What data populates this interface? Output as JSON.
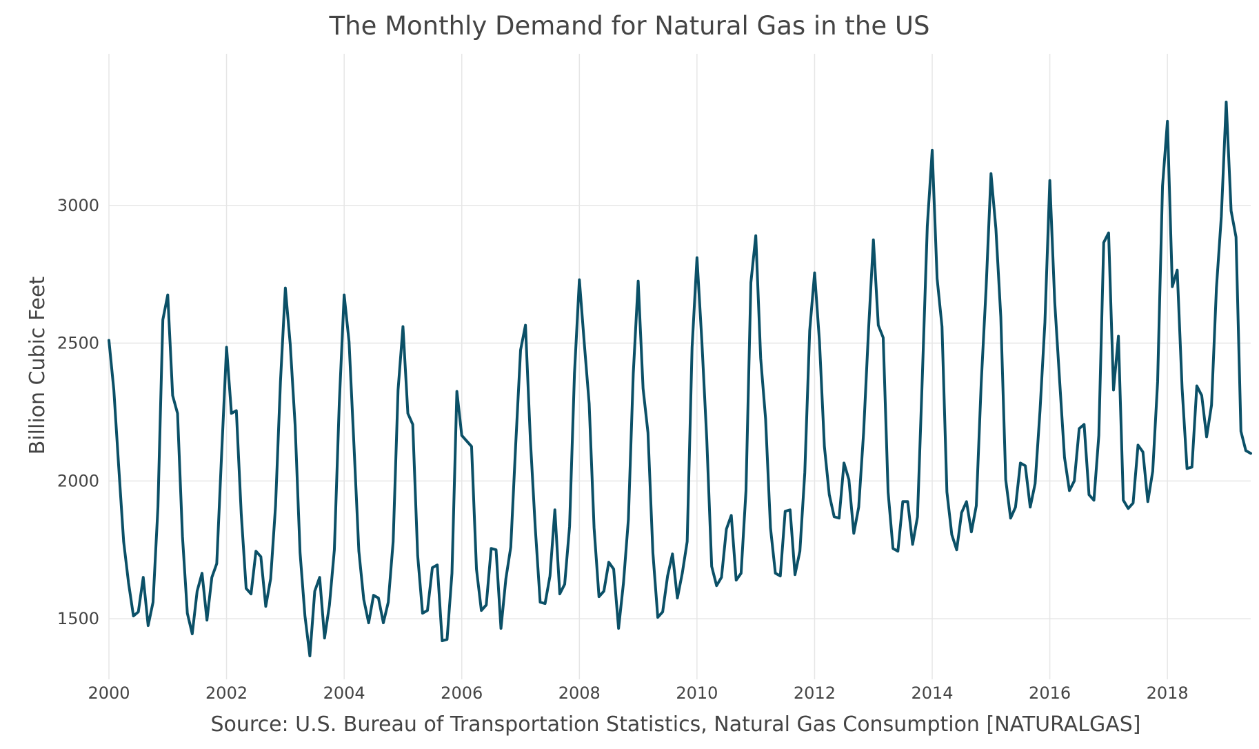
{
  "chart_data": {
    "type": "line",
    "title": "The Monthly Demand for Natural Gas in the US",
    "xlabel": "Source: U.S. Bureau of Transportation Statistics, Natural Gas Consumption [NATURALGAS]",
    "ylabel": "Billion Cubic Feet",
    "x_ticks": [
      "2000",
      "2002",
      "2004",
      "2006",
      "2008",
      "2010",
      "2012",
      "2014",
      "2016",
      "2018"
    ],
    "y_ticks": [
      "1500",
      "2000",
      "2500",
      "3000"
    ],
    "xlim": [
      "2000-01",
      "2019-06"
    ],
    "ylim": [
      1280,
      3550
    ],
    "grid": true,
    "colors": {
      "line": "#0b5067",
      "grid": "#e6e6e6",
      "text": "#444444",
      "background": "#ffffff"
    },
    "x": [
      "2000-01",
      "2000-02",
      "2000-03",
      "2000-04",
      "2000-05",
      "2000-06",
      "2000-07",
      "2000-08",
      "2000-09",
      "2000-10",
      "2000-11",
      "2000-12",
      "2001-01",
      "2001-02",
      "2001-03",
      "2001-04",
      "2001-05",
      "2001-06",
      "2001-07",
      "2001-08",
      "2001-09",
      "2001-10",
      "2001-11",
      "2001-12",
      "2002-01",
      "2002-02",
      "2002-03",
      "2002-04",
      "2002-05",
      "2002-06",
      "2002-07",
      "2002-08",
      "2002-09",
      "2002-10",
      "2002-11",
      "2002-12",
      "2003-01",
      "2003-02",
      "2003-03",
      "2003-04",
      "2003-05",
      "2003-06",
      "2003-07",
      "2003-08",
      "2003-09",
      "2003-10",
      "2003-11",
      "2003-12",
      "2004-01",
      "2004-02",
      "2004-03",
      "2004-04",
      "2004-05",
      "2004-06",
      "2004-07",
      "2004-08",
      "2004-09",
      "2004-10",
      "2004-11",
      "2004-12",
      "2005-01",
      "2005-02",
      "2005-03",
      "2005-04",
      "2005-05",
      "2005-06",
      "2005-07",
      "2005-08",
      "2005-09",
      "2005-10",
      "2005-11",
      "2005-12",
      "2006-01",
      "2006-02",
      "2006-03",
      "2006-04",
      "2006-05",
      "2006-06",
      "2006-07",
      "2006-08",
      "2006-09",
      "2006-10",
      "2006-11",
      "2006-12",
      "2007-01",
      "2007-02",
      "2007-03",
      "2007-04",
      "2007-05",
      "2007-06",
      "2007-07",
      "2007-08",
      "2007-09",
      "2007-10",
      "2007-11",
      "2007-12",
      "2008-01",
      "2008-02",
      "2008-03",
      "2008-04",
      "2008-05",
      "2008-06",
      "2008-07",
      "2008-08",
      "2008-09",
      "2008-10",
      "2008-11",
      "2008-12",
      "2009-01",
      "2009-02",
      "2009-03",
      "2009-04",
      "2009-05",
      "2009-06",
      "2009-07",
      "2009-08",
      "2009-09",
      "2009-10",
      "2009-11",
      "2009-12",
      "2010-01",
      "2010-02",
      "2010-03",
      "2010-04",
      "2010-05",
      "2010-06",
      "2010-07",
      "2010-08",
      "2010-09",
      "2010-10",
      "2010-11",
      "2010-12",
      "2011-01",
      "2011-02",
      "2011-03",
      "2011-04",
      "2011-05",
      "2011-06",
      "2011-07",
      "2011-08",
      "2011-09",
      "2011-10",
      "2011-11",
      "2011-12",
      "2012-01",
      "2012-02",
      "2012-03",
      "2012-04",
      "2012-05",
      "2012-06",
      "2012-07",
      "2012-08",
      "2012-09",
      "2012-10",
      "2012-11",
      "2012-12",
      "2013-01",
      "2013-02",
      "2013-03",
      "2013-04",
      "2013-05",
      "2013-06",
      "2013-07",
      "2013-08",
      "2013-09",
      "2013-10",
      "2013-11",
      "2013-12",
      "2014-01",
      "2014-02",
      "2014-03",
      "2014-04",
      "2014-05",
      "2014-06",
      "2014-07",
      "2014-08",
      "2014-09",
      "2014-10",
      "2014-11",
      "2014-12",
      "2015-01",
      "2015-02",
      "2015-03",
      "2015-04",
      "2015-05",
      "2015-06",
      "2015-07",
      "2015-08",
      "2015-09",
      "2015-10",
      "2015-11",
      "2015-12",
      "2016-01",
      "2016-02",
      "2016-03",
      "2016-04",
      "2016-05",
      "2016-06",
      "2016-07",
      "2016-08",
      "2016-09",
      "2016-10",
      "2016-11",
      "2016-12",
      "2017-01",
      "2017-02",
      "2017-03",
      "2017-04",
      "2017-05",
      "2017-06",
      "2017-07",
      "2017-08",
      "2017-09",
      "2017-10",
      "2017-11",
      "2017-12",
      "2018-01",
      "2018-02",
      "2018-03",
      "2018-04",
      "2018-05",
      "2018-06",
      "2018-07",
      "2018-08",
      "2018-09",
      "2018-10",
      "2018-11",
      "2018-12",
      "2019-01",
      "2019-02",
      "2019-03",
      "2019-04",
      "2019-05",
      "2019-06"
    ],
    "values": [
      2510,
      2330,
      2050,
      1780,
      1630,
      1510,
      1525,
      1650,
      1475,
      1560,
      1905,
      2585,
      2675,
      2310,
      2245,
      1800,
      1520,
      1445,
      1600,
      1665,
      1495,
      1650,
      1700,
      2100,
      2485,
      2245,
      2255,
      1880,
      1610,
      1590,
      1745,
      1725,
      1545,
      1645,
      1910,
      2360,
      2700,
      2495,
      2200,
      1740,
      1510,
      1365,
      1600,
      1650,
      1430,
      1550,
      1750,
      2280,
      2675,
      2505,
      2130,
      1745,
      1570,
      1485,
      1585,
      1575,
      1485,
      1560,
      1780,
      2330,
      2560,
      2245,
      2205,
      1730,
      1520,
      1530,
      1685,
      1695,
      1420,
      1425,
      1665,
      2325,
      2165,
      2145,
      2125,
      1680,
      1530,
      1550,
      1755,
      1750,
      1465,
      1645,
      1760,
      2130,
      2475,
      2565,
      2150,
      1830,
      1560,
      1555,
      1655,
      1895,
      1590,
      1625,
      1835,
      2390,
      2730,
      2500,
      2280,
      1830,
      1580,
      1600,
      1705,
      1680,
      1465,
      1630,
      1860,
      2390,
      2725,
      2335,
      2175,
      1740,
      1505,
      1525,
      1655,
      1735,
      1575,
      1665,
      1780,
      2485,
      2810,
      2505,
      2150,
      1690,
      1620,
      1650,
      1825,
      1875,
      1640,
      1665,
      1965,
      2720,
      2890,
      2445,
      2225,
      1830,
      1665,
      1655,
      1890,
      1895,
      1660,
      1745,
      2030,
      2545,
      2755,
      2505,
      2125,
      1950,
      1870,
      1865,
      2065,
      2005,
      1810,
      1905,
      2175,
      2545,
      2875,
      2565,
      2520,
      1960,
      1755,
      1745,
      1925,
      1925,
      1770,
      1870,
      2385,
      2925,
      3200,
      2735,
      2560,
      1960,
      1805,
      1750,
      1885,
      1925,
      1815,
      1910,
      2355,
      2700,
      3115,
      2915,
      2595,
      2005,
      1865,
      1905,
      2065,
      2055,
      1905,
      1990,
      2255,
      2575,
      3090,
      2650,
      2365,
      2085,
      1965,
      2000,
      2190,
      2205,
      1950,
      1930,
      2165,
      2865,
      2900,
      2330,
      2525,
      1930,
      1900,
      1920,
      2130,
      2105,
      1925,
      2035,
      2360,
      3070,
      3305,
      2705,
      2765,
      2335,
      2045,
      2050,
      2345,
      2310,
      2160,
      2275,
      2700,
      2960,
      3375,
      2980,
      2885,
      2180,
      2110,
      2100
    ]
  }
}
